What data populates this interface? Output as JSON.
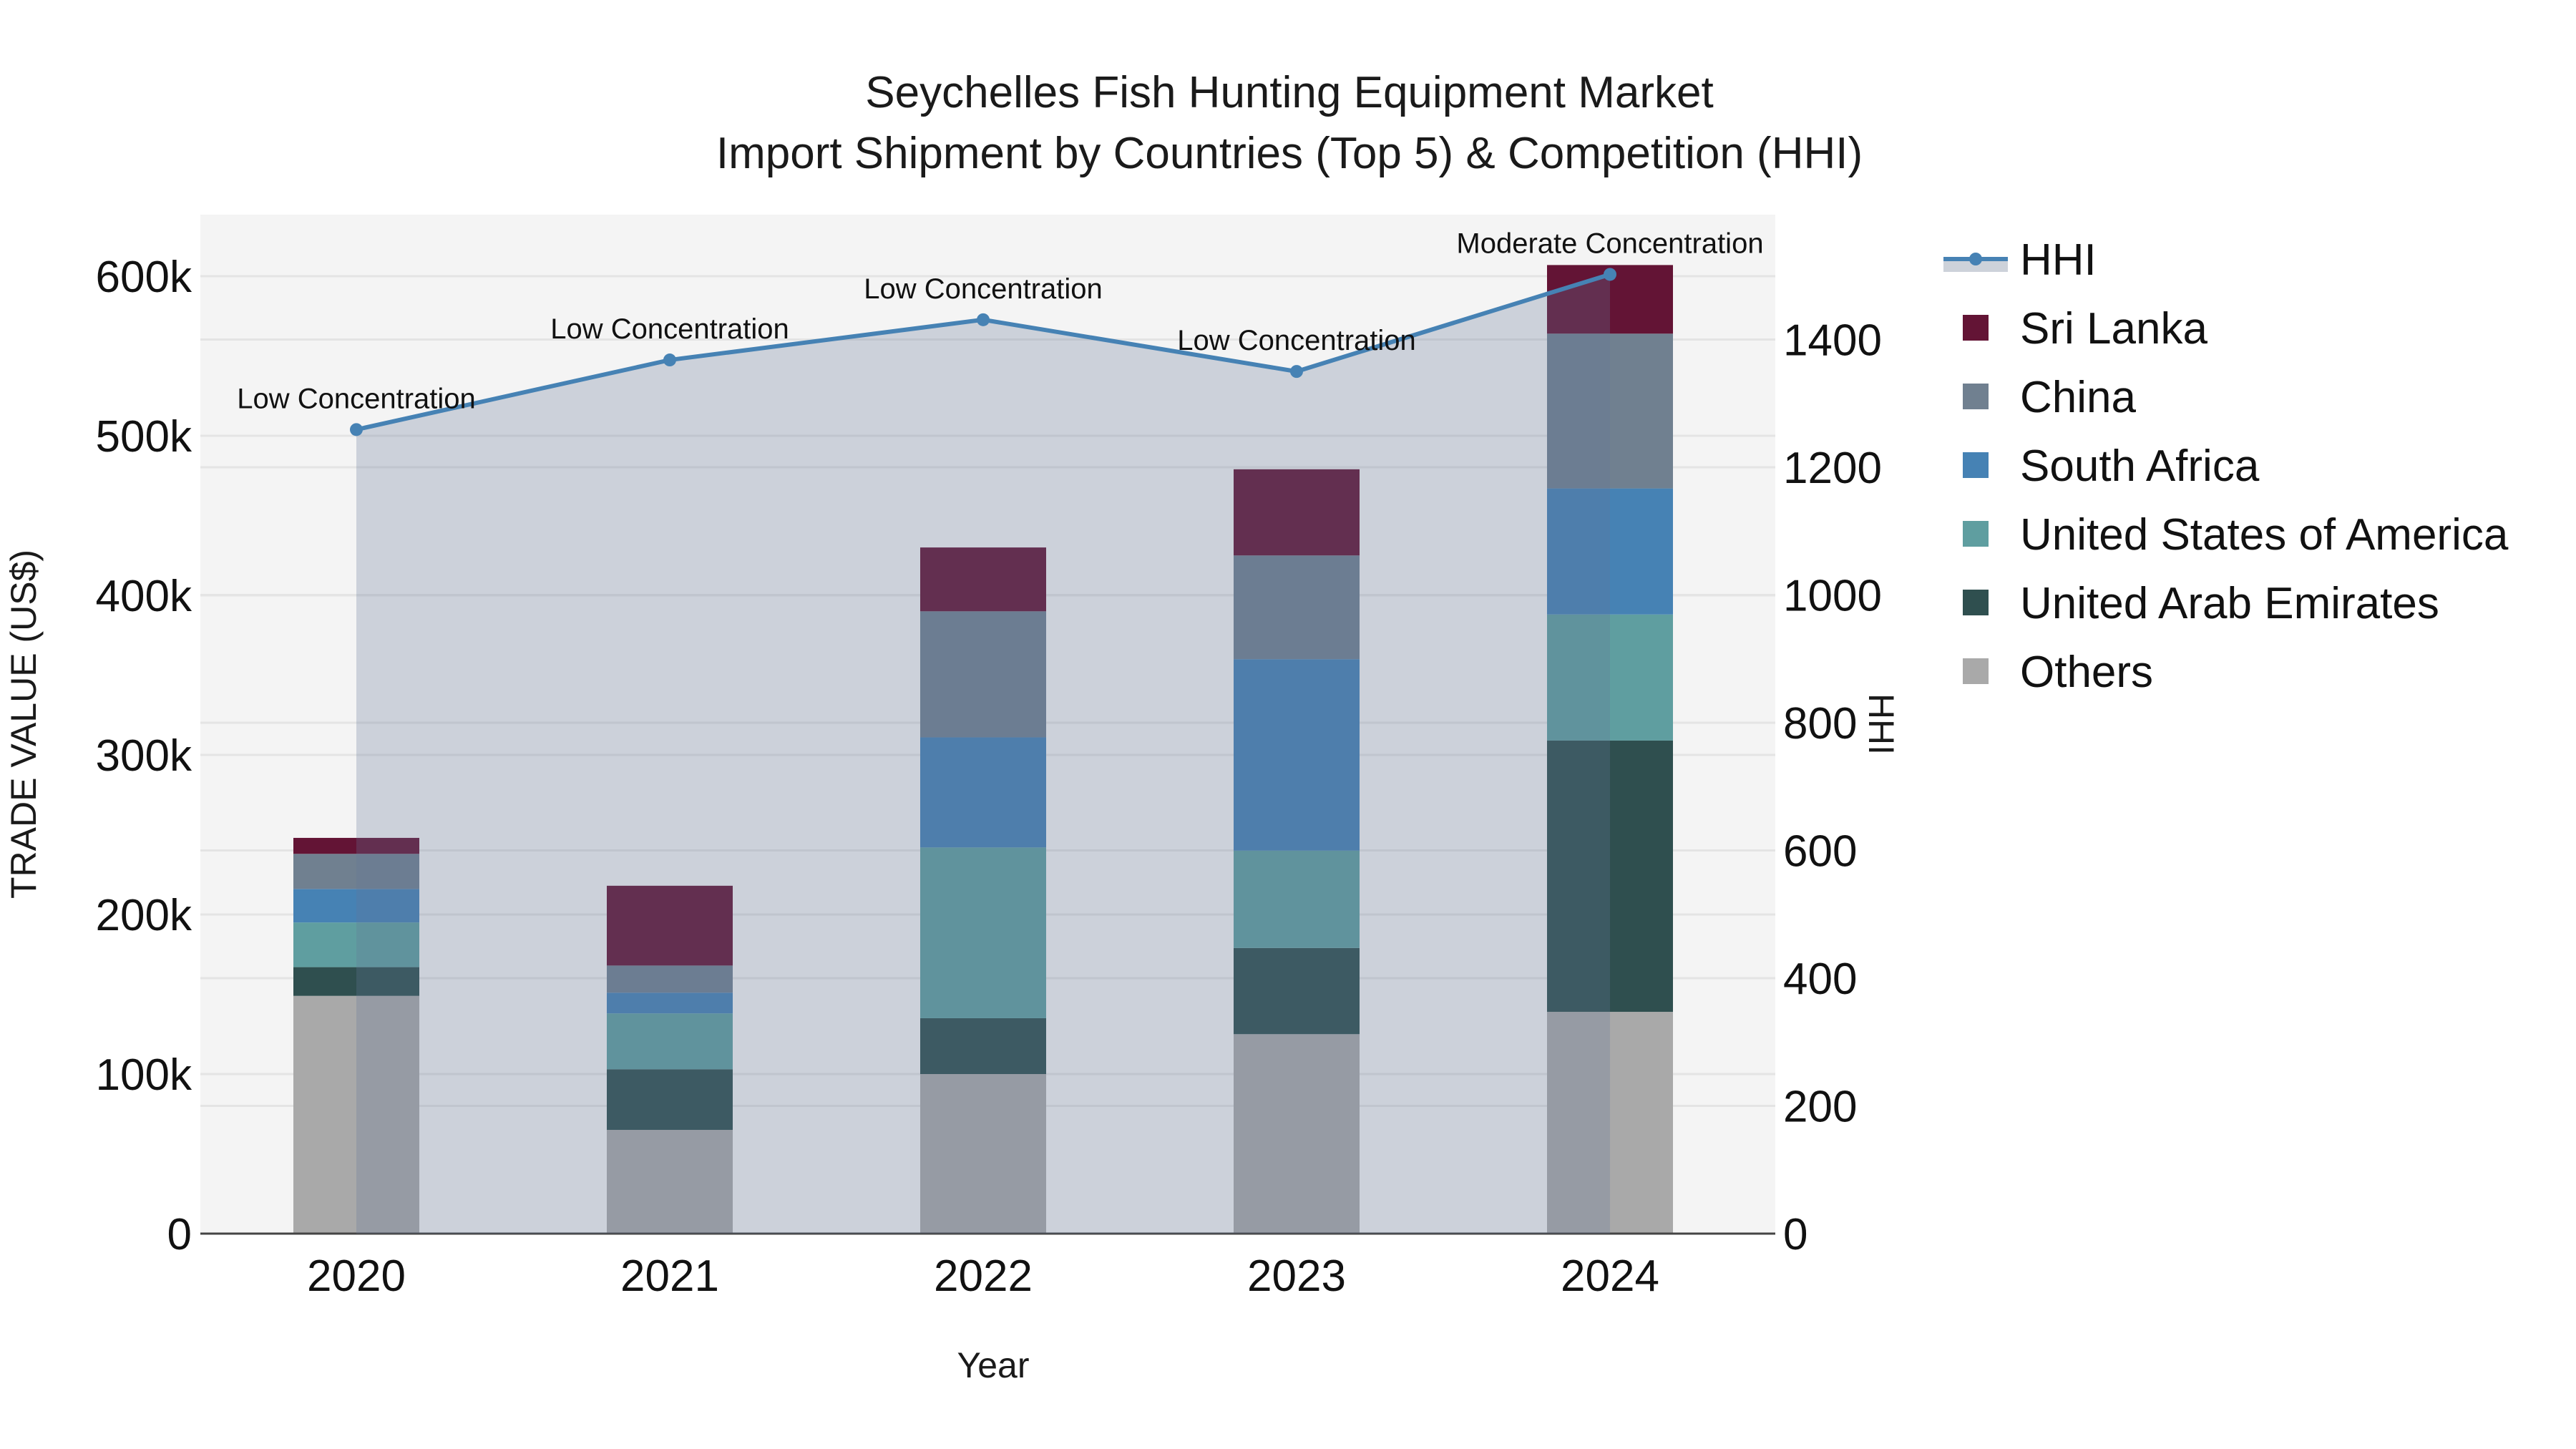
{
  "title": {
    "line1": "Seychelles Fish Hunting Equipment Market",
    "line2": "Import Shipment by Countries (Top 5) & Competition (HHI)"
  },
  "axes": {
    "x_title": "Year",
    "y_left_title": "TRADE VALUE (US$)",
    "y_right_title": "HHI",
    "y_left_ticks": [
      "0",
      "100k",
      "200k",
      "300k",
      "400k",
      "500k",
      "600k"
    ],
    "y_right_ticks": [
      "0",
      "200",
      "400",
      "600",
      "800",
      "1000",
      "1200",
      "1400"
    ]
  },
  "legend": {
    "items": [
      {
        "label": "HHI",
        "type": "line",
        "color": "#4682B4"
      },
      {
        "label": "Sri Lanka",
        "type": "bar",
        "color": "#631435"
      },
      {
        "label": "China",
        "type": "bar",
        "color": "#708090"
      },
      {
        "label": "South Africa",
        "type": "bar",
        "color": "#4682B4"
      },
      {
        "label": "United States of America",
        "type": "bar",
        "color": "#5F9EA0"
      },
      {
        "label": "United Arab Emirates",
        "type": "bar",
        "color": "#2F4F4F"
      },
      {
        "label": "Others",
        "type": "bar",
        "color": "#A9A9A9"
      }
    ]
  },
  "colors": {
    "plot_bg": "#F4F4F4",
    "grid": "#E4E4E4",
    "hhi_line": "#4682B4",
    "hhi_area": "rgba(100,120,150,0.28)"
  },
  "chart_data": {
    "type": "bar",
    "stacked": true,
    "title": "Seychelles Fish Hunting Equipment Market — Import Shipment by Countries (Top 5) & Competition (HHI)",
    "xlabel": "Year",
    "ylabel": "TRADE VALUE (US$)",
    "y2label": "HHI",
    "categories": [
      "2020",
      "2021",
      "2022",
      "2023",
      "2024"
    ],
    "ylim": [
      0,
      640000
    ],
    "y2lim": [
      0,
      1600
    ],
    "grid": true,
    "legend_position": "right",
    "series": [
      {
        "name": "Others",
        "color": "#A9A9A9",
        "values": [
          149000,
          65000,
          100000,
          125000,
          139000
        ]
      },
      {
        "name": "United Arab Emirates",
        "color": "#2F4F4F",
        "values": [
          18000,
          38000,
          35000,
          54000,
          170000
        ]
      },
      {
        "name": "United States of America",
        "color": "#5F9EA0",
        "values": [
          28000,
          35000,
          107000,
          61000,
          79000
        ]
      },
      {
        "name": "South Africa",
        "color": "#4682B4",
        "values": [
          21000,
          13000,
          69000,
          120000,
          79000
        ]
      },
      {
        "name": "China",
        "color": "#708090",
        "values": [
          22000,
          17000,
          79000,
          65000,
          97000
        ]
      },
      {
        "name": "Sri Lanka",
        "color": "#631435",
        "values": [
          10000,
          50000,
          40000,
          54000,
          43000
        ]
      }
    ],
    "hhi": {
      "name": "HHI",
      "type": "line+area",
      "axis": "right",
      "values": [
        1259,
        1368,
        1431,
        1350,
        1502
      ],
      "annotations": [
        "Low Concentration",
        "Low Concentration",
        "Low Concentration",
        "Low Concentration",
        "Moderate Concentration"
      ]
    }
  }
}
